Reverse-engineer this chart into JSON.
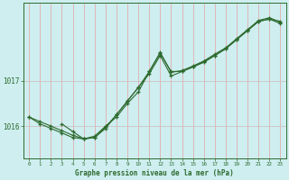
{
  "title": "Graphe pression niveau de la mer (hPa)",
  "bg_color": "#ceeef0",
  "grid_color_v": "#e8a0a0",
  "grid_color_h": "#d0b8b8",
  "line_color": "#2d6a2d",
  "xlim": [
    -0.5,
    23.5
  ],
  "ylim": [
    1015.3,
    1018.7
  ],
  "yticks": [
    1016,
    1017
  ],
  "xticks": [
    0,
    1,
    2,
    3,
    4,
    5,
    6,
    7,
    8,
    9,
    10,
    11,
    12,
    13,
    14,
    15,
    16,
    17,
    18,
    19,
    20,
    21,
    22,
    23
  ],
  "series1": {
    "x": [
      0,
      1,
      2,
      3,
      4,
      5,
      6,
      7,
      8,
      9,
      10,
      11,
      12,
      13,
      14,
      15,
      16,
      17,
      18,
      19,
      20,
      21,
      22,
      23
    ],
    "y": [
      1016.2,
      1016.05,
      1015.95,
      1015.85,
      1015.75,
      1015.72,
      1015.75,
      1015.95,
      1016.25,
      1016.55,
      1016.85,
      1017.15,
      1017.55,
      1017.1,
      1017.2,
      1017.3,
      1017.4,
      1017.55,
      1017.7,
      1017.9,
      1018.1,
      1018.3,
      1018.35,
      1018.3
    ]
  },
  "series2": {
    "x": [
      0,
      1,
      2,
      3,
      4,
      5,
      6,
      7,
      8,
      9,
      10,
      11,
      12,
      13,
      14,
      15,
      16,
      17,
      18,
      19,
      20,
      21,
      22,
      23
    ],
    "y": [
      1016.2,
      1016.1,
      1016.0,
      1015.9,
      1015.8,
      1015.72,
      1015.78,
      1016.0,
      1016.2,
      1016.5,
      1016.75,
      1017.2,
      1017.6,
      1017.2,
      1017.2,
      1017.3,
      1017.42,
      1017.55,
      1017.7,
      1017.9,
      1018.1,
      1018.3,
      1018.35,
      1018.25
    ]
  },
  "series3": {
    "x": [
      3,
      4,
      5,
      6,
      7,
      8,
      9,
      10,
      11,
      12,
      13,
      14,
      15,
      16,
      17,
      18,
      19,
      20,
      21,
      22,
      23
    ],
    "y": [
      1016.05,
      1015.88,
      1015.72,
      1015.75,
      1015.98,
      1016.25,
      1016.55,
      1016.85,
      1017.2,
      1017.62,
      1017.18,
      1017.22,
      1017.32,
      1017.43,
      1017.58,
      1017.72,
      1017.92,
      1018.12,
      1018.32,
      1018.38,
      1018.28
    ]
  }
}
